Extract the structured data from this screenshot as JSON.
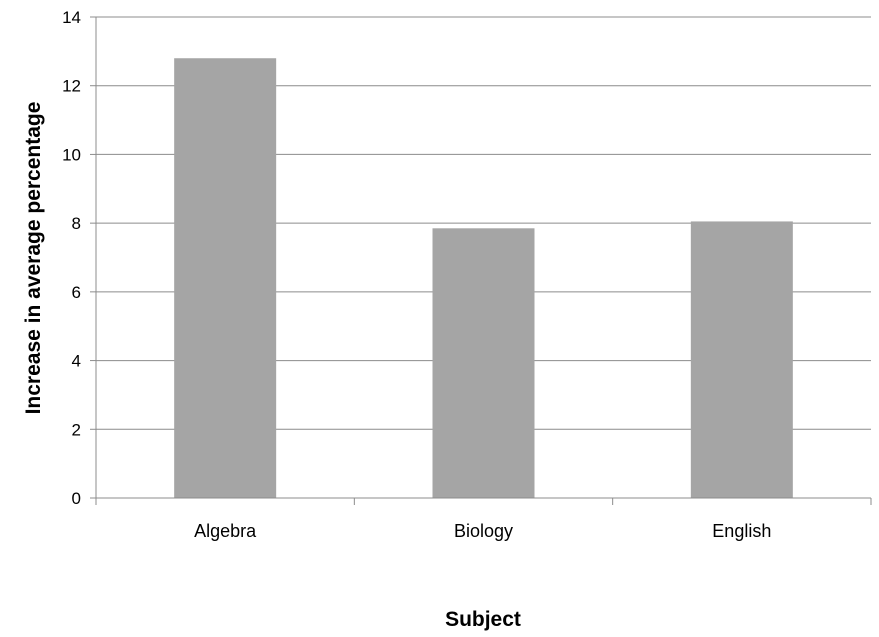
{
  "chart_data": {
    "type": "bar",
    "categories": [
      "Algebra",
      "Biology",
      "English"
    ],
    "series": [
      {
        "values": [
          12.8,
          7.85,
          8.05
        ]
      }
    ],
    "title": "",
    "xlabel": "Subject",
    "ylabel": "Increase in average percentage",
    "ylim": [
      0,
      14
    ],
    "yticks": [
      0,
      2,
      4,
      6,
      8,
      10,
      12,
      14
    ],
    "grid": true,
    "legend": "none",
    "colors": {
      "bar": "#a5a5a5",
      "grid": "#8c8c8c",
      "axis": "#8c8c8c",
      "text": "#000000"
    }
  }
}
